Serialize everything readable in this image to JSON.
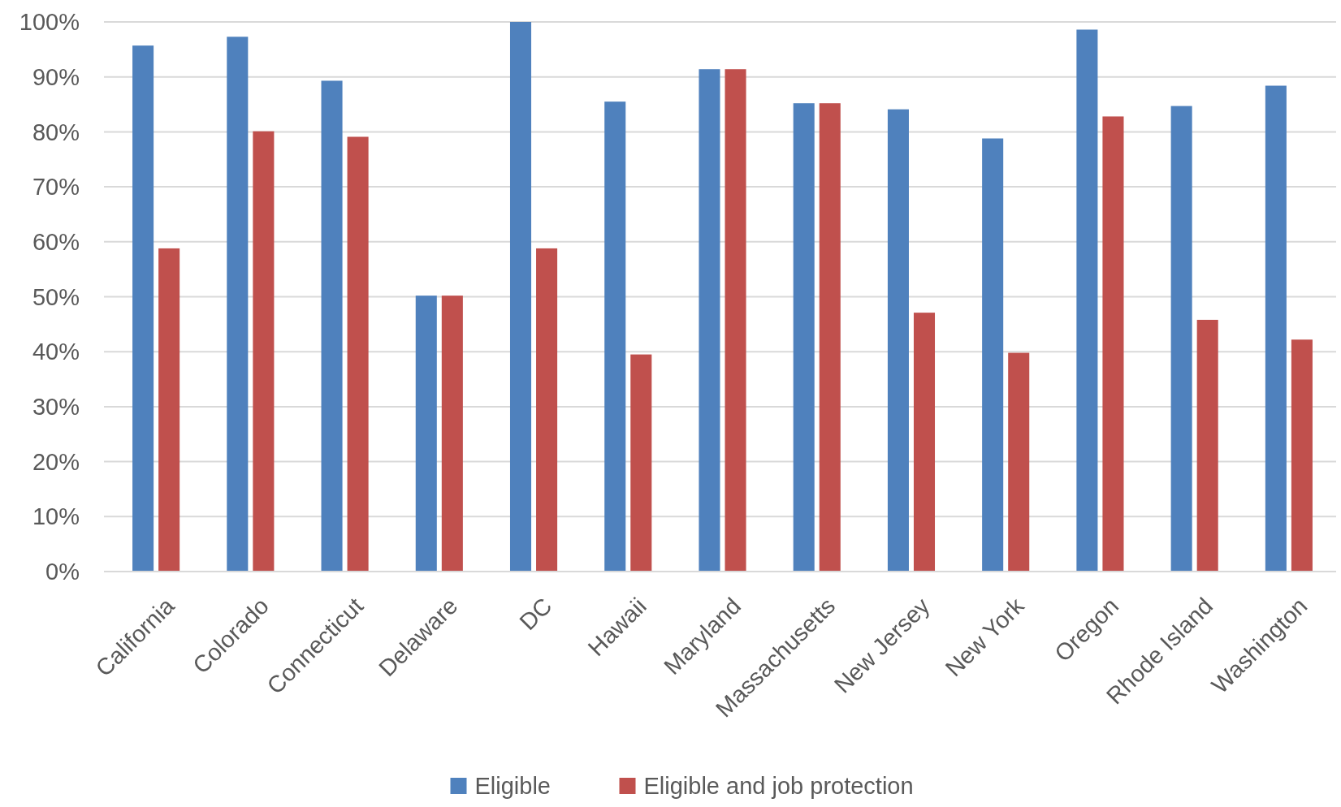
{
  "chart_data": {
    "type": "bar",
    "categories": [
      "California",
      "Colorado",
      "Connecticut",
      "Delaware",
      "DC",
      "Hawaii",
      "Maryland",
      "Massachusetts",
      "New Jersey",
      "New York",
      "Oregon",
      "Rhode Island",
      "Washington"
    ],
    "series": [
      {
        "name": "Eligible",
        "color": "#4f81bd",
        "values": [
          95.7,
          97.3,
          89.3,
          50.2,
          100,
          85.5,
          91.4,
          85.2,
          84.1,
          78.8,
          98.6,
          84.7,
          88.4
        ]
      },
      {
        "name": "Eligible and job protection",
        "color": "#c0504d",
        "values": [
          58.8,
          80.1,
          79.1,
          50.2,
          58.8,
          39.5,
          91.4,
          85.2,
          47.1,
          39.8,
          82.8,
          45.8,
          42.2
        ]
      }
    ],
    "ylim": [
      0,
      100
    ],
    "yticks": [
      {
        "value": 0,
        "label": "0%"
      },
      {
        "value": 10,
        "label": "10%"
      },
      {
        "value": 20,
        "label": "20%"
      },
      {
        "value": 30,
        "label": "30%"
      },
      {
        "value": 40,
        "label": "40%"
      },
      {
        "value": 50,
        "label": "50%"
      },
      {
        "value": 60,
        "label": "60%"
      },
      {
        "value": 70,
        "label": "70%"
      },
      {
        "value": 80,
        "label": "80%"
      },
      {
        "value": 90,
        "label": "90%"
      },
      {
        "value": 100,
        "label": "100%"
      }
    ],
    "grid": "y",
    "legend": "bottom"
  }
}
